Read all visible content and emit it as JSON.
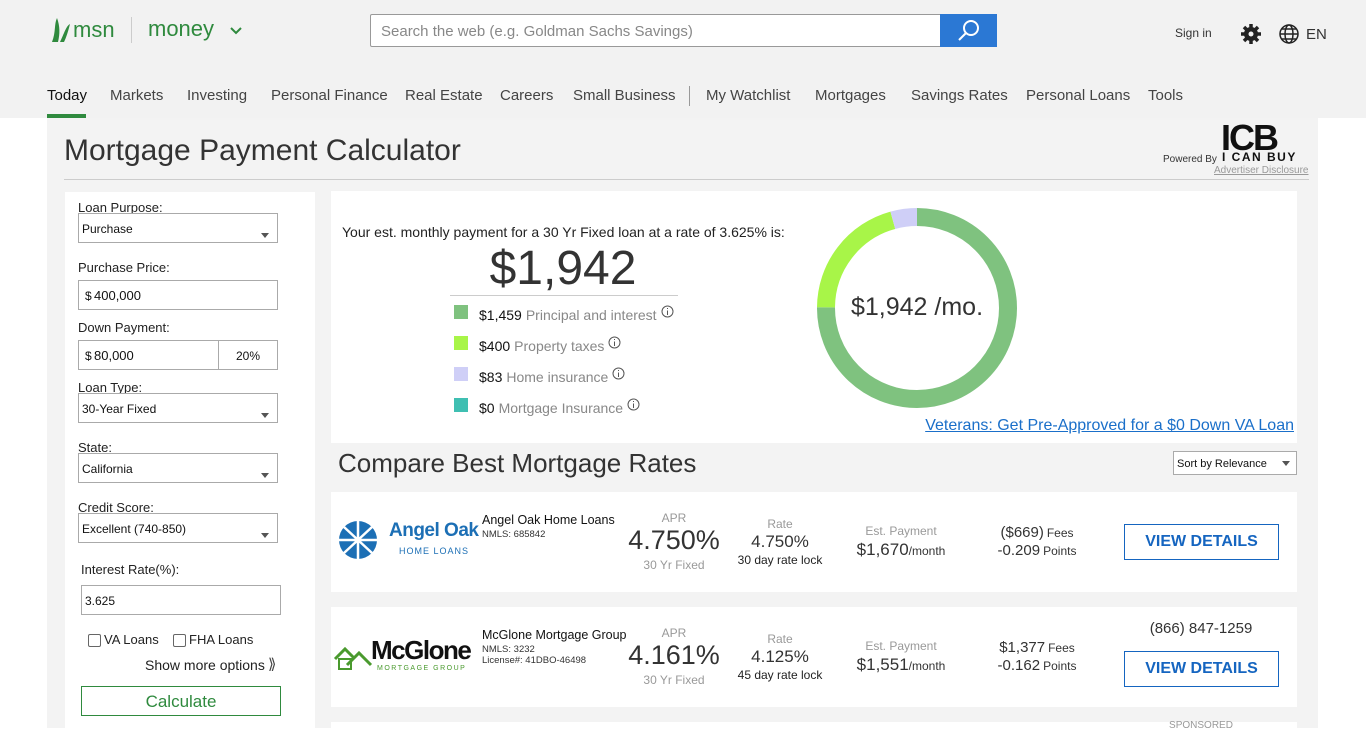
{
  "header": {
    "brand": "msn",
    "section": "money",
    "search_placeholder": "Search the web (e.g. Goldman Sachs Savings)",
    "sign_in": "Sign in",
    "language": "EN"
  },
  "nav": {
    "primary": [
      "Today",
      "Markets",
      "Investing",
      "Personal Finance",
      "Real Estate",
      "Careers",
      "Small Business"
    ],
    "secondary": [
      "My Watchlist",
      "Mortgages",
      "Savings Rates",
      "Personal Loans",
      "Tools"
    ]
  },
  "calculator": {
    "title": "Mortgage Payment Calculator",
    "powered_by": "Powered By",
    "logo": "ICB",
    "logo_sub": "I CAN BUY",
    "disclosure": "Advertiser Disclosure"
  },
  "form": {
    "loan_purpose": {
      "label": "Loan Purpose:",
      "value": "Purchase"
    },
    "purchase_price": {
      "label": "Purchase Price:",
      "currency": "$",
      "value": "400,000"
    },
    "down_payment": {
      "label": "Down Payment:",
      "currency": "$",
      "value": "80,000",
      "percent": "20%"
    },
    "loan_type": {
      "label": "Loan Type:",
      "value": "30-Year Fixed"
    },
    "state": {
      "label": "State:",
      "value": "California"
    },
    "credit_score": {
      "label": "Credit Score:",
      "value": "Excellent (740-850)"
    },
    "interest_rate": {
      "label": "Interest Rate(%):",
      "value": "3.625"
    },
    "va_loans": "VA Loans",
    "fha_loans": "FHA Loans",
    "more_options": "Show more options",
    "calculate": "Calculate"
  },
  "summary": {
    "text": "Your est. monthly payment for a 30 Yr Fixed loan at a rate of 3.625% is:",
    "amount": "$1,942",
    "center": "$1,942 /mo.",
    "breakdown": [
      {
        "value": 1459,
        "label": "$1,459",
        "name": "Principal and interest",
        "color": "#7fc27f"
      },
      {
        "value": 400,
        "label": "$400",
        "name": "Property taxes",
        "color": "#a8f548"
      },
      {
        "value": 83,
        "label": "$83",
        "name": "Home insurance",
        "color": "#cfcff7"
      },
      {
        "value": 0,
        "label": "$0",
        "name": "Mortgage Insurance",
        "color": "#3fbfb2"
      }
    ],
    "va_link": "Veterans: Get Pre-Approved for a $0 Down VA Loan"
  },
  "compare": {
    "title": "Compare Best Mortgage Rates",
    "sort": "Sort by Relevance",
    "labels": {
      "sponsored": "SPONSORED",
      "apr": "APR",
      "rate": "Rate",
      "payment": "Est. Payment",
      "per": "/month",
      "fees": "Fees",
      "points": "Points",
      "cta": "VIEW DETAILS"
    },
    "offers": [
      {
        "logo": [
          "Angel Oak",
          "HOME LOANS"
        ],
        "name": "Angel Oak Home Loans",
        "nmls": "NMLS: 685842",
        "apr": "4.750%",
        "term": "30 Yr Fixed",
        "rate": "4.750%",
        "lock": "30 day rate lock",
        "payment": "$1,670",
        "fees": "($669)",
        "points": "-0.209"
      },
      {
        "logo": [
          "McGlone",
          "MORTGAGE GROUP"
        ],
        "name": "McGlone Mortgage Group",
        "nmls": "NMLS: 3232",
        "license": "License#: 41DBO-46498",
        "apr": "4.161%",
        "term": "30 Yr Fixed",
        "rate": "4.125%",
        "lock": "45 day rate lock",
        "payment": "$1,551",
        "fees": "$1,377",
        "points": "-0.162",
        "phone": "(866) 847-1259"
      }
    ]
  }
}
